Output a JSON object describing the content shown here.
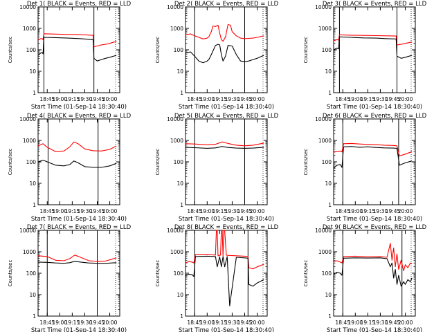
{
  "chart_data": [
    {
      "type": "line",
      "title": "Det 1(  BLACK = Events, RED = LLD",
      "xlabel": "Start Time (01-Sep-14 18:30:40)",
      "ylabel": "Counts/sec",
      "yscale": "log",
      "ylim": [
        1,
        10000
      ],
      "xlim": [
        "18:34",
        "20:12"
      ],
      "xticks": [
        "18:45",
        "19:00",
        "19:15",
        "19:30",
        "19:45",
        "20:00"
      ],
      "yticks": [
        "1",
        "10",
        "100",
        "1000",
        "10000"
      ],
      "series": [
        {
          "name": "Events",
          "color": "#000000",
          "x": [
            "18:34",
            "18:37",
            "18:39",
            "18:40",
            "18:41",
            "18:55",
            "19:10",
            "19:25",
            "19:38",
            "19:40",
            "19:41",
            "19:45",
            "19:50",
            "19:55",
            "20:00",
            "20:08"
          ],
          "values": [
            55,
            70,
            75,
            65,
            380,
            370,
            350,
            330,
            300,
            300,
            40,
            30,
            35,
            40,
            45,
            55
          ]
        },
        {
          "name": "LLD",
          "color": "#ff0000",
          "x": [
            "18:34",
            "18:37",
            "18:39",
            "18:40",
            "18:41",
            "18:55",
            "19:10",
            "19:25",
            "19:38",
            "19:40",
            "19:41",
            "19:45",
            "19:50",
            "19:55",
            "20:00",
            "20:08"
          ],
          "values": [
            280,
            330,
            330,
            300,
            560,
            540,
            520,
            510,
            480,
            470,
            140,
            150,
            170,
            180,
            200,
            250
          ]
        }
      ]
    },
    {
      "type": "line",
      "title": "Det 2(  BLACK = Events, RED = LLD",
      "xlabel": "Start Time (01-Sep-14 18:30:40)",
      "ylabel": "Counts/sec",
      "yscale": "log",
      "ylim": [
        1,
        10000
      ],
      "xlim": [
        "18:34",
        "20:12"
      ],
      "xticks": [
        "18:45",
        "19:00",
        "19:15",
        "19:30",
        "19:45",
        "20:00"
      ],
      "yticks": [
        "1",
        "10",
        "100",
        "1000",
        "10000"
      ],
      "series": [
        {
          "name": "Events",
          "color": "#000000",
          "x": [
            "18:34",
            "18:40",
            "18:45",
            "18:50",
            "18:55",
            "19:00",
            "19:02",
            "19:05",
            "19:10",
            "19:13",
            "19:15",
            "19:17",
            "19:19",
            "19:22",
            "19:25",
            "19:30",
            "19:35",
            "19:40",
            "19:45",
            "19:50",
            "19:55",
            "20:00",
            "20:08"
          ],
          "values": [
            70,
            80,
            50,
            30,
            25,
            30,
            35,
            60,
            160,
            180,
            170,
            60,
            30,
            50,
            160,
            150,
            60,
            30,
            28,
            30,
            35,
            40,
            55
          ]
        },
        {
          "name": "LLD",
          "color": "#ff0000",
          "x": [
            "18:34",
            "18:40",
            "18:45",
            "18:50",
            "18:55",
            "19:00",
            "19:02",
            "19:05",
            "19:07",
            "19:10",
            "19:13",
            "19:15",
            "19:17",
            "19:19",
            "19:22",
            "19:25",
            "19:28",
            "19:30",
            "19:35",
            "19:40",
            "19:45",
            "19:50",
            "19:55",
            "20:00",
            "20:08"
          ],
          "values": [
            500,
            550,
            450,
            380,
            320,
            350,
            400,
            700,
            1300,
            1200,
            1400,
            600,
            300,
            250,
            400,
            1500,
            1400,
            700,
            450,
            350,
            330,
            340,
            350,
            380,
            450
          ]
        }
      ]
    },
    {
      "type": "line",
      "title": "Det 3(  BLACK = Events, RED = LLD",
      "xlabel": "Start Time (01-Sep-14 18:30:40)",
      "ylabel": "Counts/sec",
      "yscale": "log",
      "ylim": [
        1,
        10000
      ],
      "xlim": [
        "18:34",
        "20:12"
      ],
      "xticks": [
        "18:45",
        "19:00",
        "19:15",
        "19:30",
        "19:45",
        "20:00"
      ],
      "yticks": [
        "1",
        "10",
        "100",
        "1000",
        "10000"
      ],
      "series": [
        {
          "name": "Events",
          "color": "#000000",
          "x": [
            "18:34",
            "18:38",
            "18:40",
            "18:41",
            "18:55",
            "19:10",
            "19:25",
            "19:38",
            "19:49",
            "19:50",
            "19:55",
            "20:00",
            "20:08"
          ],
          "values": [
            100,
            120,
            110,
            400,
            380,
            360,
            350,
            330,
            320,
            50,
            40,
            45,
            55
          ]
        },
        {
          "name": "LLD",
          "color": "#ff0000",
          "x": [
            "18:34",
            "18:38",
            "18:40",
            "18:41",
            "18:55",
            "19:10",
            "19:25",
            "19:38",
            "19:49",
            "19:50",
            "19:55",
            "20:00",
            "20:08"
          ],
          "values": [
            260,
            300,
            280,
            500,
            480,
            470,
            460,
            450,
            440,
            170,
            180,
            200,
            230
          ]
        }
      ]
    },
    {
      "type": "line",
      "title": "Det 4(  BLACK = Events, RED = LLD",
      "xlabel": "Start Time (01-Sep-14 18:30:40)",
      "ylabel": "Counts/sec",
      "yscale": "log",
      "ylim": [
        1,
        10000
      ],
      "xlim": [
        "18:34",
        "20:12"
      ],
      "xticks": [
        "18:45",
        "19:00",
        "19:15",
        "19:30",
        "19:45",
        "20:00"
      ],
      "yticks": [
        "1",
        "10",
        "100",
        "1000",
        "10000"
      ],
      "series": [
        {
          "name": "Events",
          "color": "#000000",
          "x": [
            "18:34",
            "18:40",
            "18:45",
            "18:55",
            "19:05",
            "19:12",
            "19:17",
            "19:22",
            "19:30",
            "19:40",
            "19:50",
            "20:00",
            "20:08"
          ],
          "values": [
            100,
            120,
            100,
            70,
            65,
            75,
            110,
            90,
            60,
            55,
            55,
            65,
            85
          ]
        },
        {
          "name": "LLD",
          "color": "#ff0000",
          "x": [
            "18:34",
            "18:40",
            "18:45",
            "18:55",
            "19:05",
            "19:12",
            "19:17",
            "19:22",
            "19:30",
            "19:40",
            "19:50",
            "20:00",
            "20:08"
          ],
          "values": [
            550,
            700,
            480,
            300,
            320,
            500,
            850,
            700,
            400,
            330,
            320,
            380,
            550
          ]
        }
      ]
    },
    {
      "type": "line",
      "title": "Det 5(  BLACK = Events, RED = LLD",
      "xlabel": "Start Time (01-Sep-14 18:30:40)",
      "ylabel": "Counts/sec",
      "yscale": "log",
      "ylim": [
        1,
        10000
      ],
      "xlim": [
        "18:34",
        "20:12"
      ],
      "xticks": [
        "18:45",
        "19:00",
        "19:15",
        "19:30",
        "19:45",
        "20:00"
      ],
      "yticks": [
        "1",
        "10",
        "100",
        "1000",
        "10000"
      ],
      "series": [
        {
          "name": "Events",
          "color": "#000000",
          "x": [
            "18:34",
            "18:45",
            "19:00",
            "19:10",
            "19:18",
            "19:25",
            "19:35",
            "19:45",
            "19:55",
            "20:08"
          ],
          "values": [
            480,
            460,
            430,
            450,
            520,
            470,
            440,
            430,
            440,
            480
          ]
        },
        {
          "name": "LLD",
          "color": "#ff0000",
          "x": [
            "18:34",
            "18:45",
            "19:00",
            "19:10",
            "19:18",
            "19:25",
            "19:35",
            "19:45",
            "19:55",
            "20:08"
          ],
          "values": [
            700,
            680,
            620,
            660,
            850,
            720,
            600,
            560,
            600,
            750
          ]
        }
      ]
    },
    {
      "type": "line",
      "title": "Det 6(  BLACK = Events, RED = LLD",
      "xlabel": "Start Time (01-Sep-14 18:30:40)",
      "ylabel": "Counts/sec",
      "yscale": "log",
      "ylim": [
        1,
        10000
      ],
      "xlim": [
        "18:34",
        "20:12"
      ],
      "xticks": [
        "18:45",
        "19:00",
        "19:15",
        "19:30",
        "19:45",
        "20:00"
      ],
      "yticks": [
        "1",
        "10",
        "100",
        "1000",
        "10000"
      ],
      "series": [
        {
          "name": "Events",
          "color": "#000000",
          "x": [
            "18:34",
            "18:38",
            "18:42",
            "18:44",
            "18:46",
            "18:55",
            "19:05",
            "19:15",
            "19:25",
            "19:35",
            "19:45",
            "19:50",
            "19:53",
            "19:55",
            "20:00",
            "20:08"
          ],
          "values": [
            50,
            70,
            75,
            55,
            500,
            520,
            480,
            500,
            470,
            450,
            440,
            430,
            70,
            75,
            90,
            110
          ]
        },
        {
          "name": "LLD",
          "color": "#ff0000",
          "x": [
            "18:34",
            "18:38",
            "18:42",
            "18:44",
            "18:46",
            "18:55",
            "19:05",
            "19:15",
            "19:25",
            "19:35",
            "19:45",
            "19:50",
            "19:53",
            "19:55",
            "20:00",
            "20:08"
          ],
          "values": [
            280,
            300,
            320,
            290,
            700,
            720,
            680,
            650,
            630,
            600,
            580,
            560,
            190,
            200,
            230,
            300
          ]
        }
      ]
    },
    {
      "type": "line",
      "title": "Det 7(  BLACK = Events, RED = LLD",
      "xlabel": "Start Time (01-Sep-14 18:30:40)",
      "ylabel": "Counts/sec",
      "yscale": "log",
      "ylim": [
        1,
        10000
      ],
      "xlim": [
        "18:34",
        "20:12"
      ],
      "xticks": [
        "18:45",
        "19:00",
        "19:15",
        "19:30",
        "19:45",
        "20:00"
      ],
      "yticks": [
        "1",
        "10",
        "100",
        "1000",
        "10000"
      ],
      "series": [
        {
          "name": "Events",
          "color": "#000000",
          "x": [
            "18:34",
            "18:45",
            "18:55",
            "19:05",
            "19:12",
            "19:18",
            "19:25",
            "19:35",
            "19:45",
            "19:55",
            "20:08"
          ],
          "values": [
            330,
            320,
            300,
            290,
            310,
            360,
            330,
            300,
            290,
            290,
            310
          ]
        },
        {
          "name": "LLD",
          "color": "#ff0000",
          "x": [
            "18:34",
            "18:45",
            "18:55",
            "19:05",
            "19:12",
            "19:18",
            "19:25",
            "19:35",
            "19:45",
            "19:55",
            "20:08"
          ],
          "values": [
            650,
            600,
            400,
            380,
            480,
            700,
            550,
            380,
            360,
            370,
            520
          ]
        }
      ]
    },
    {
      "type": "line",
      "title": "Det 8(  BLACK = Events, RED = LLD",
      "xlabel": "Start Time (01-Sep-14 18:30:40)",
      "ylabel": "Counts/sec",
      "yscale": "log",
      "ylim": [
        1,
        10000
      ],
      "xlim": [
        "18:34",
        "20:12"
      ],
      "xticks": [
        "18:45",
        "19:00",
        "19:15",
        "19:30",
        "19:45",
        "20:00"
      ],
      "yticks": [
        "1",
        "10",
        "100",
        "1000",
        "10000"
      ],
      "series": [
        {
          "name": "Events",
          "color": "#000000",
          "x": [
            "18:34",
            "18:38",
            "18:42",
            "18:44",
            "18:46",
            "19:00",
            "19:10",
            "19:12",
            "19:15",
            "19:17",
            "19:19",
            "19:21",
            "19:24",
            "19:27",
            "19:35",
            "19:45",
            "19:49",
            "19:50",
            "19:55",
            "20:00",
            "20:08"
          ],
          "values": [
            75,
            90,
            85,
            70,
            600,
            620,
            600,
            200,
            580,
            200,
            600,
            200,
            600,
            3,
            550,
            520,
            500,
            30,
            25,
            35,
            50
          ]
        },
        {
          "name": "LLD",
          "color": "#ff0000",
          "x": [
            "18:34",
            "18:38",
            "18:42",
            "18:44",
            "18:46",
            "19:00",
            "19:10",
            "19:11",
            "19:12",
            "19:13",
            "19:16",
            "19:17",
            "19:18",
            "19:19",
            "19:20",
            "19:21",
            "19:23",
            "19:24",
            "19:35",
            "19:45",
            "19:49",
            "19:50",
            "19:55",
            "20:00",
            "20:08"
          ],
          "values": [
            300,
            350,
            330,
            300,
            750,
            760,
            700,
            10000,
            10000,
            650,
            700,
            10000,
            10000,
            650,
            10000,
            10000,
            700,
            680,
            650,
            620,
            600,
            180,
            160,
            200,
            260
          ]
        }
      ]
    },
    {
      "type": "line",
      "title": "Det 9(  BLACK = Events, RED = LLD",
      "xlabel": "Start Time (01-Sep-14 18:30:40)",
      "ylabel": "Counts/sec",
      "yscale": "log",
      "ylim": [
        1,
        10000
      ],
      "xlim": [
        "18:34",
        "20:12"
      ],
      "xticks": [
        "18:45",
        "19:00",
        "19:15",
        "19:30",
        "19:45",
        "20:00"
      ],
      "yticks": [
        "1",
        "10",
        "100",
        "1000",
        "10000"
      ],
      "series": [
        {
          "name": "Events",
          "color": "#000000",
          "x": [
            "18:34",
            "18:38",
            "18:42",
            "18:44",
            "18:46",
            "19:00",
            "19:15",
            "19:30",
            "19:38",
            "19:42",
            "19:44",
            "19:46",
            "19:48",
            "19:50",
            "19:52",
            "19:55",
            "19:58",
            "20:00",
            "20:03",
            "20:06",
            "20:08"
          ],
          "values": [
            90,
            110,
            100,
            80,
            500,
            520,
            510,
            520,
            480,
            200,
            300,
            60,
            150,
            30,
            80,
            25,
            40,
            30,
            50,
            40,
            60
          ]
        },
        {
          "name": "LLD",
          "color": "#ff0000",
          "x": [
            "18:34",
            "18:38",
            "18:42",
            "18:44",
            "18:46",
            "19:00",
            "19:15",
            "19:30",
            "19:38",
            "19:42",
            "19:44",
            "19:46",
            "19:48",
            "19:50",
            "19:52",
            "19:55",
            "19:58",
            "20:00",
            "20:03",
            "20:06",
            "20:08"
          ],
          "values": [
            350,
            380,
            330,
            300,
            600,
            620,
            580,
            600,
            550,
            2500,
            400,
            1500,
            200,
            800,
            150,
            400,
            130,
            250,
            180,
            300,
            280
          ]
        }
      ]
    }
  ]
}
